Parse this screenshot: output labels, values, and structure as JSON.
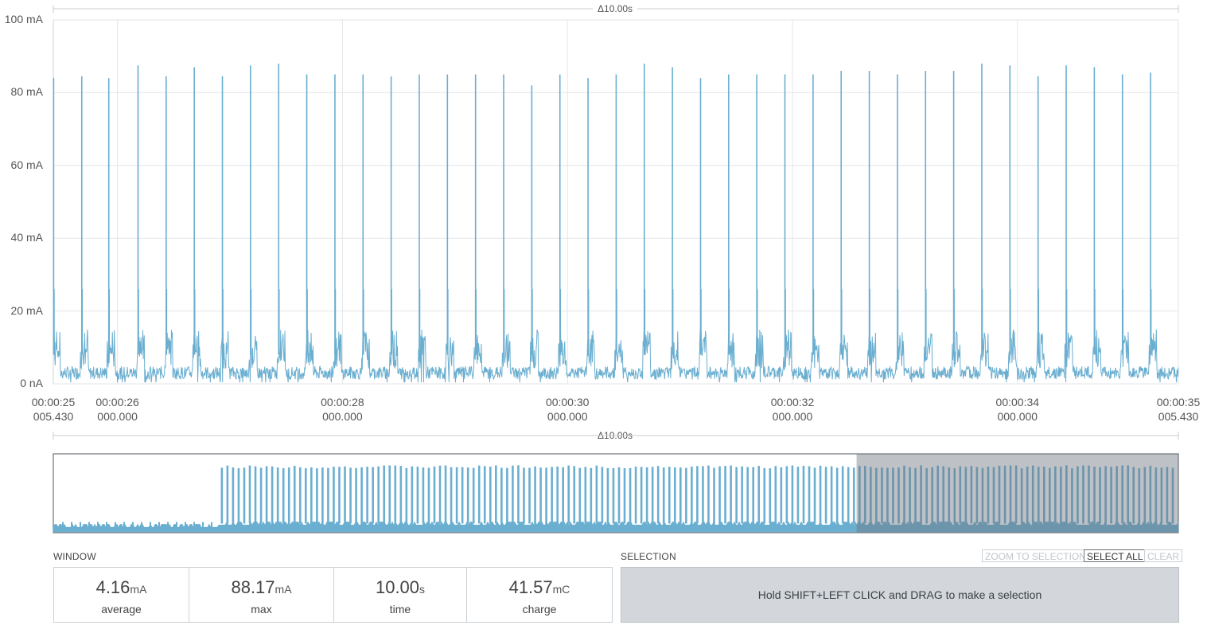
{
  "chart_data": [
    {
      "type": "line",
      "name": "main-window",
      "xrange_seconds": [
        25.43,
        35.43
      ],
      "ylim": [
        0,
        100
      ],
      "y_ticks": [
        "100 mA",
        "80 mA",
        "60 mA",
        "40 mA",
        "20 mA",
        "0 nA"
      ],
      "x_ticks": [
        {
          "time": "00:00:25",
          "sub": "005.430",
          "t": 25.43
        },
        {
          "time": "00:00:26",
          "sub": "000.000",
          "t": 26.0
        },
        {
          "time": "00:00:28",
          "sub": "000.000",
          "t": 28.0
        },
        {
          "time": "00:00:30",
          "sub": "000.000",
          "t": 30.0
        },
        {
          "time": "00:00:32",
          "sub": "000.000",
          "t": 32.0
        },
        {
          "time": "00:00:34",
          "sub": "000.000",
          "t": 34.0
        },
        {
          "time": "00:00:35",
          "sub": "005.430",
          "t": 35.43
        }
      ],
      "baseline_mA": 4,
      "burst_mA": 12,
      "spike_times_s": [
        25.43,
        25.68,
        25.92,
        26.18,
        26.43,
        26.68,
        26.93,
        27.18,
        27.43,
        27.68,
        27.93,
        28.18,
        28.43,
        28.68,
        28.93,
        29.18,
        29.43,
        29.68,
        29.93,
        30.18,
        30.43,
        30.68,
        30.93,
        31.18,
        31.43,
        31.68,
        31.93,
        32.18,
        32.43,
        32.68,
        32.93,
        33.18,
        33.43,
        33.68,
        33.93,
        34.18,
        34.43,
        34.68,
        34.93,
        35.18
      ],
      "spike_peaks_mA": [
        84,
        84.5,
        84,
        87.5,
        84.5,
        87,
        84.5,
        87.5,
        88,
        85,
        85,
        85,
        84.5,
        85,
        85,
        85,
        85,
        82,
        85,
        84,
        85,
        88,
        87,
        84,
        85,
        85,
        85,
        85,
        86,
        86,
        85,
        86,
        86,
        88,
        87.5,
        84.5,
        87.5,
        87,
        85,
        85.5
      ],
      "grid": true,
      "color": "#6aaed0"
    },
    {
      "type": "area",
      "name": "overview",
      "note_levels_mA": {
        "idle": 2,
        "active_peak": 85
      },
      "active_from_fraction": 0.147,
      "view_window_fraction": [
        0.714,
        1.0
      ]
    }
  ],
  "delta_label": "Δ10.00s",
  "window": {
    "label": "WINDOW",
    "stats": [
      {
        "value": "4.16",
        "unit": "mA",
        "caption": "average"
      },
      {
        "value": "88.17",
        "unit": "mA",
        "caption": "max"
      },
      {
        "value": "10.00",
        "unit": "s",
        "caption": "time"
      },
      {
        "value": "41.57",
        "unit": "mC",
        "caption": "charge"
      }
    ]
  },
  "selection": {
    "label": "SELECTION",
    "buttons": {
      "zoom": "ZOOM TO SELECTION",
      "select_all": "SELECT ALL",
      "clear": "CLEAR"
    },
    "hint": "Hold SHIFT+LEFT CLICK and DRAG to make a selection"
  },
  "colors": {
    "trace": "#6aaed0",
    "grid": "#e4e6e8",
    "window_overlay": "rgba(110,118,126,0.45)"
  }
}
